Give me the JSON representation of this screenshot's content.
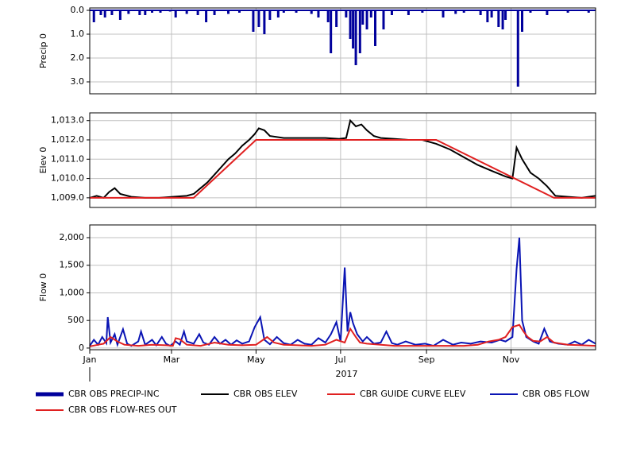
{
  "chart_data": [
    {
      "type": "bar",
      "ylabel": "Precip 0",
      "inverted": true,
      "grid": true,
      "xlim": [
        0,
        365
      ],
      "xticks": [
        0,
        59,
        120,
        181,
        243,
        304
      ],
      "ylim": [
        -0.1,
        3.5
      ],
      "yticks": [
        {
          "value": 0,
          "label": "0.0"
        },
        {
          "value": 1,
          "label": "1.0"
        },
        {
          "value": 2,
          "label": "2.0"
        },
        {
          "value": 3,
          "label": "3.0"
        }
      ],
      "series": [
        {
          "name": "CBR OBS PRECIP-INC",
          "color": "#00009c",
          "x": [
            3,
            8,
            11,
            16,
            22,
            28,
            36,
            40,
            45,
            51,
            58,
            62,
            70,
            78,
            84,
            90,
            100,
            108,
            118,
            122,
            126,
            130,
            136,
            140,
            149,
            160,
            165,
            172,
            174,
            178,
            185,
            188,
            190,
            192,
            195,
            197,
            200,
            203,
            206,
            212,
            218,
            230,
            240,
            255,
            264,
            270,
            282,
            287,
            290,
            295,
            298,
            300,
            309,
            312,
            318,
            330,
            345,
            360
          ],
          "values": [
            0.5,
            0.2,
            0.3,
            0.2,
            0.4,
            0.15,
            0.2,
            0.2,
            0.1,
            0.1,
            0.05,
            0.3,
            0.15,
            0.2,
            0.5,
            0.2,
            0.15,
            0.1,
            0.9,
            0.7,
            1.0,
            0.4,
            0.3,
            0.1,
            0.1,
            0.15,
            0.3,
            0.5,
            1.8,
            0.7,
            0.3,
            1.2,
            1.6,
            2.3,
            1.8,
            0.6,
            0.8,
            0.3,
            1.5,
            0.8,
            0.2,
            0.2,
            0.1,
            0.3,
            0.15,
            0.1,
            0.2,
            0.5,
            0.3,
            0.7,
            0.8,
            0.4,
            3.2,
            0.9,
            0.1,
            0.2,
            0.1,
            0.1
          ]
        }
      ]
    },
    {
      "type": "line",
      "ylabel": "Elev 0",
      "grid": true,
      "xlim": [
        0,
        365
      ],
      "xticks": [
        0,
        59,
        120,
        181,
        243,
        304
      ],
      "ylim": [
        1008.5,
        1013.4
      ],
      "yticks": [
        {
          "value": 1009,
          "label": "1,009.0"
        },
        {
          "value": 1010,
          "label": "1,010.0"
        },
        {
          "value": 1011,
          "label": "1,011.0"
        },
        {
          "value": 1012,
          "label": "1,012.0"
        },
        {
          "value": 1013,
          "label": "1,013.0"
        }
      ],
      "series": [
        {
          "name": "CBR OBS ELEV",
          "color": "#000000",
          "x": [
            0,
            5,
            10,
            14,
            18,
            22,
            30,
            40,
            50,
            60,
            70,
            75,
            80,
            85,
            90,
            95,
            100,
            105,
            110,
            115,
            119,
            122,
            126,
            130,
            140,
            150,
            160,
            170,
            180,
            185,
            188,
            192,
            196,
            200,
            205,
            210,
            220,
            230,
            240,
            250,
            260,
            270,
            280,
            290,
            300,
            305,
            308,
            312,
            318,
            324,
            330,
            336,
            345,
            355,
            365
          ],
          "values": [
            1009.0,
            1009.1,
            1009.0,
            1009.3,
            1009.5,
            1009.2,
            1009.05,
            1009.0,
            1009.0,
            1009.05,
            1009.1,
            1009.2,
            1009.5,
            1009.8,
            1010.2,
            1010.6,
            1011.0,
            1011.3,
            1011.7,
            1012.0,
            1012.3,
            1012.6,
            1012.5,
            1012.2,
            1012.1,
            1012.1,
            1012.1,
            1012.1,
            1012.05,
            1012.1,
            1013.0,
            1012.7,
            1012.8,
            1012.5,
            1012.2,
            1012.1,
            1012.05,
            1012.0,
            1012.0,
            1011.8,
            1011.5,
            1011.1,
            1010.7,
            1010.4,
            1010.1,
            1010.0,
            1011.6,
            1011.0,
            1010.3,
            1010.0,
            1009.6,
            1009.1,
            1009.05,
            1009.0,
            1009.1
          ]
        },
        {
          "name": "CBR GUIDE CURVE ELEV",
          "color": "#e02020",
          "x": [
            0,
            75,
            120,
            250,
            335,
            365
          ],
          "values": [
            1009,
            1009,
            1012,
            1012,
            1009,
            1009
          ]
        }
      ]
    },
    {
      "type": "line",
      "ylabel": "Flow 0",
      "xlabel": "2017",
      "grid": true,
      "xlim": [
        0,
        365
      ],
      "xticks": [
        {
          "value": 0,
          "label": "Jan"
        },
        {
          "value": 59,
          "label": "Mar"
        },
        {
          "value": 120,
          "label": "May"
        },
        {
          "value": 181,
          "label": "Jul"
        },
        {
          "value": 243,
          "label": "Sep"
        },
        {
          "value": 304,
          "label": "Nov"
        }
      ],
      "ylim": [
        -30,
        2230
      ],
      "yticks": [
        0,
        500,
        {
          "value": 1000,
          "label": "1,000"
        },
        {
          "value": 1500,
          "label": "1,500"
        },
        {
          "value": 2000,
          "label": "2,000"
        }
      ],
      "series": [
        {
          "name": "CBR OBS FLOW",
          "color": "#0a14b4",
          "x": [
            0,
            3,
            6,
            9,
            12,
            13,
            15,
            18,
            20,
            24,
            27,
            30,
            35,
            37,
            40,
            45,
            48,
            52,
            55,
            58,
            62,
            65,
            68,
            70,
            75,
            79,
            82,
            86,
            90,
            94,
            98,
            102,
            106,
            110,
            115,
            119,
            123,
            126,
            130,
            135,
            140,
            145,
            150,
            155,
            160,
            165,
            170,
            174,
            178,
            181,
            184,
            186,
            188,
            190,
            193,
            197,
            200,
            205,
            210,
            214,
            218,
            222,
            228,
            235,
            242,
            248,
            255,
            262,
            268,
            275,
            282,
            290,
            296,
            300,
            305,
            308,
            310,
            312,
            315,
            320,
            324,
            328,
            332,
            338,
            345,
            350,
            355,
            360,
            365
          ],
          "values": [
            40,
            150,
            60,
            200,
            90,
            560,
            100,
            250,
            60,
            340,
            80,
            40,
            120,
            300,
            60,
            150,
            50,
            200,
            80,
            40,
            120,
            60,
            300,
            120,
            80,
            250,
            100,
            60,
            200,
            80,
            150,
            60,
            140,
            80,
            120,
            380,
            560,
            150,
            70,
            200,
            90,
            60,
            150,
            80,
            60,
            180,
            100,
            250,
            470,
            120,
            1460,
            300,
            650,
            450,
            250,
            120,
            200,
            80,
            100,
            300,
            90,
            60,
            120,
            60,
            80,
            40,
            150,
            60,
            100,
            80,
            120,
            100,
            150,
            120,
            200,
            1430,
            2000,
            500,
            200,
            120,
            80,
            350,
            120,
            80,
            60,
            120,
            60,
            150,
            80
          ]
        },
        {
          "name": "CBR OBS FLOW-RES OUT",
          "color": "#e02020",
          "x": [
            0,
            10,
            15,
            20,
            25,
            35,
            45,
            55,
            60,
            62,
            65,
            70,
            80,
            90,
            100,
            110,
            120,
            128,
            133,
            140,
            150,
            160,
            170,
            178,
            184,
            188,
            192,
            195,
            200,
            210,
            220,
            230,
            240,
            255,
            270,
            280,
            288,
            295,
            300,
            305,
            310,
            313,
            316,
            320,
            325,
            330,
            335,
            345,
            355,
            365
          ],
          "values": [
            30,
            80,
            200,
            120,
            60,
            40,
            60,
            50,
            40,
            180,
            160,
            60,
            40,
            100,
            60,
            50,
            60,
            200,
            100,
            60,
            50,
            40,
            60,
            150,
            100,
            350,
            200,
            100,
            80,
            60,
            40,
            40,
            40,
            40,
            40,
            60,
            120,
            150,
            200,
            380,
            420,
            300,
            200,
            130,
            120,
            200,
            100,
            60,
            50,
            40
          ]
        }
      ]
    }
  ]
}
